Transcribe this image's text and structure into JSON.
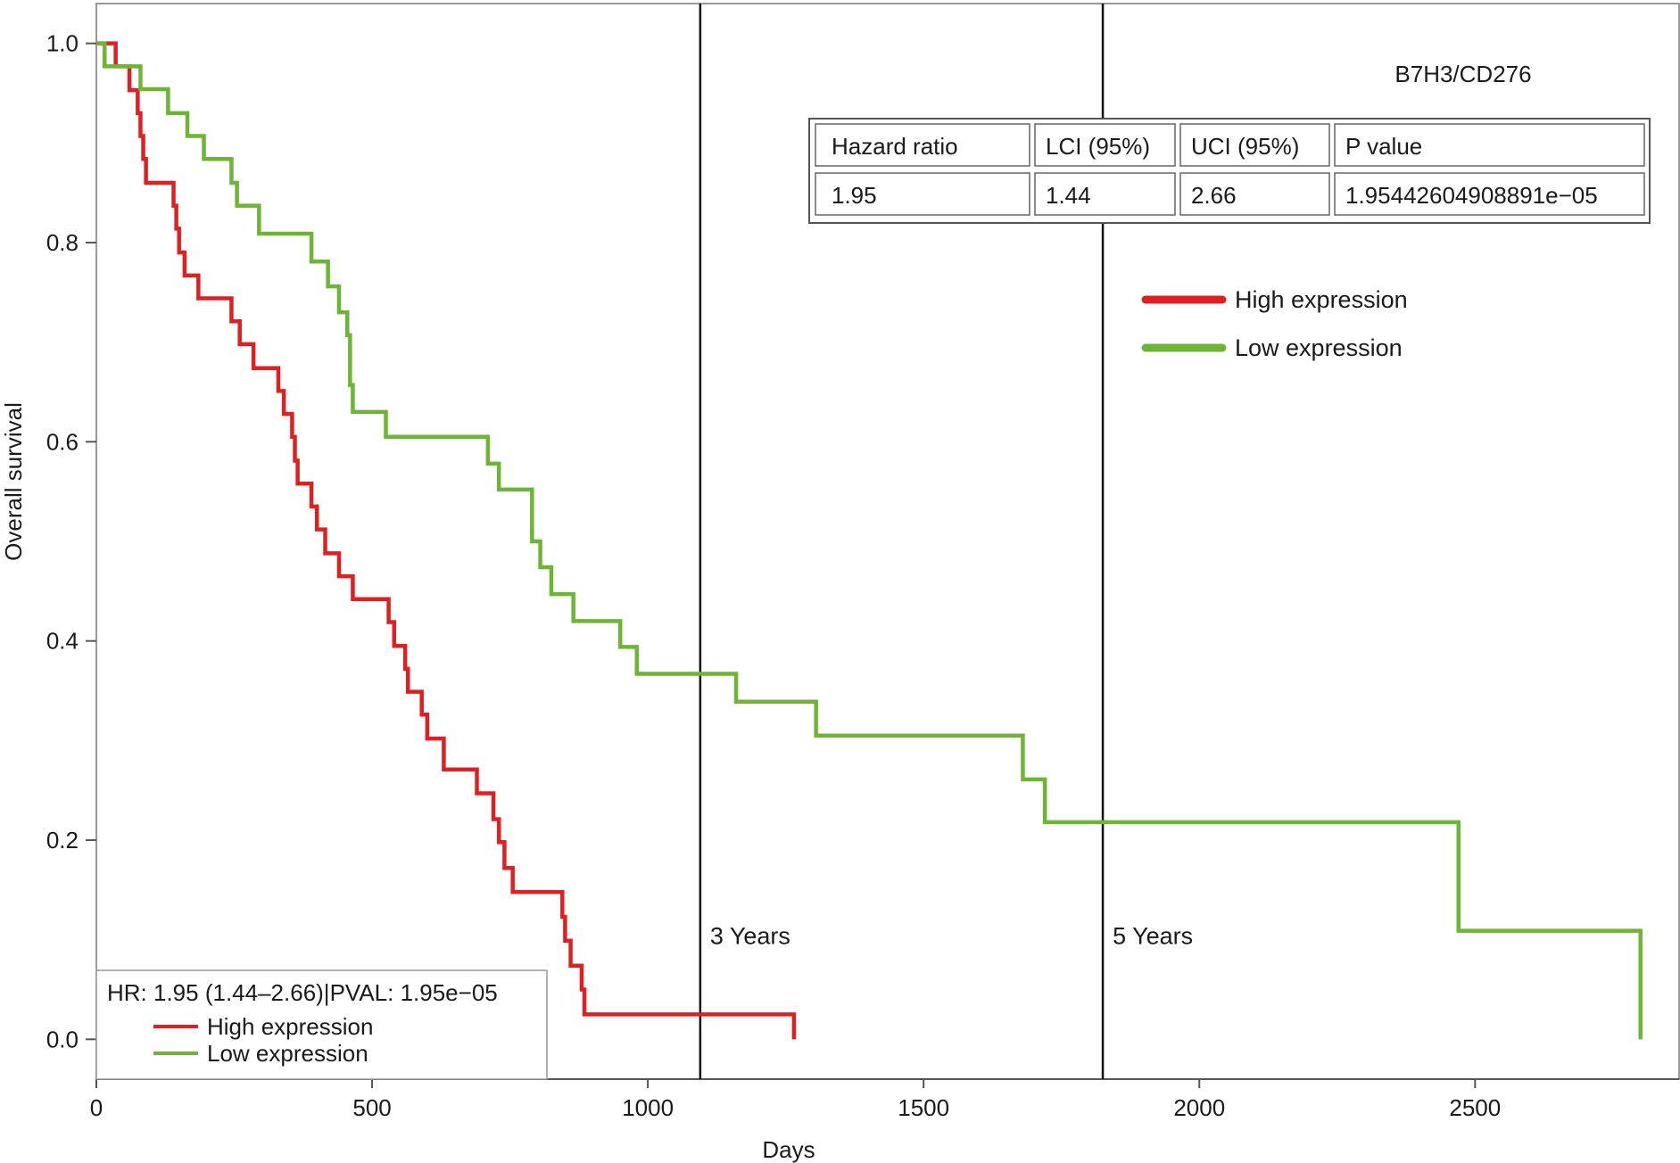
{
  "chart_data": {
    "type": "line",
    "subtype": "kaplan-meier",
    "xlabel": "Days",
    "ylabel": "Overall survival",
    "xlim": [
      0,
      2870
    ],
    "ylim": [
      -0.04,
      1.04
    ],
    "xticks": [
      0,
      500,
      1000,
      1500,
      2000,
      2500
    ],
    "xtick_labels": [
      "0",
      "500",
      "1000",
      "1500",
      "2000",
      "2500"
    ],
    "yticks": [
      0.0,
      0.2,
      0.4,
      0.6,
      0.8,
      1.0
    ],
    "ytick_labels": [
      "0.0",
      "0.2",
      "0.4",
      "0.6",
      "0.8",
      "1.0"
    ],
    "grid": false,
    "series": [
      {
        "name": "High expression",
        "color": "#e02020",
        "x": [
          0,
          35,
          60,
          75,
          80,
          85,
          90,
          110,
          140,
          145,
          150,
          160,
          185,
          245,
          260,
          285,
          330,
          340,
          355,
          360,
          365,
          390,
          400,
          415,
          440,
          465,
          530,
          540,
          560,
          565,
          590,
          600,
          630,
          690,
          720,
          730,
          740,
          755,
          845,
          850,
          860,
          880,
          885,
          1265,
          1265
        ],
        "y": [
          1.0,
          0.977,
          0.953,
          0.93,
          0.907,
          0.884,
          0.86,
          0.86,
          0.837,
          0.814,
          0.79,
          0.767,
          0.744,
          0.721,
          0.698,
          0.674,
          0.651,
          0.628,
          0.605,
          0.581,
          0.558,
          0.535,
          0.512,
          0.488,
          0.465,
          0.442,
          0.419,
          0.395,
          0.372,
          0.349,
          0.326,
          0.302,
          0.271,
          0.247,
          0.221,
          0.198,
          0.172,
          0.148,
          0.123,
          0.099,
          0.074,
          0.05,
          0.025,
          0.025,
          0.0
        ],
        "ending": 0.025
      },
      {
        "name": "Low expression",
        "color": "#6db534",
        "x": [
          0,
          15,
          80,
          130,
          165,
          195,
          245,
          255,
          295,
          390,
          420,
          440,
          455,
          460,
          465,
          525,
          710,
          730,
          790,
          805,
          825,
          865,
          950,
          980,
          1160,
          1305,
          1680,
          1720,
          2460,
          2470,
          2800
        ],
        "y": [
          1.0,
          0.977,
          0.954,
          0.93,
          0.907,
          0.884,
          0.86,
          0.837,
          0.809,
          0.781,
          0.756,
          0.73,
          0.707,
          0.657,
          0.63,
          0.605,
          0.578,
          0.552,
          0.5,
          0.474,
          0.447,
          0.42,
          0.394,
          0.367,
          0.339,
          0.305,
          0.261,
          0.218,
          0.218,
          0.109,
          0.0
        ],
        "ending": 0.109
      }
    ],
    "reference_lines": [
      {
        "x": 1095,
        "label": "3 Years"
      },
      {
        "x": 1825,
        "label": "5 Years"
      }
    ],
    "annotation": "B7H3/CD276",
    "stats_table": {
      "headers": [
        "Hazard ratio",
        "LCI (95%)",
        "UCI (95%)",
        "P value"
      ],
      "values": [
        "1.95",
        "1.44",
        "2.66",
        "1.95442604908891e−05"
      ]
    },
    "legend_top_right": [
      "High expression",
      "Low expression"
    ],
    "legend_bottom_left": {
      "title": "HR: 1.95 (1.44–2.66)|PVAL: 1.95e−05",
      "items": [
        "High expression",
        "Low expression"
      ]
    }
  }
}
